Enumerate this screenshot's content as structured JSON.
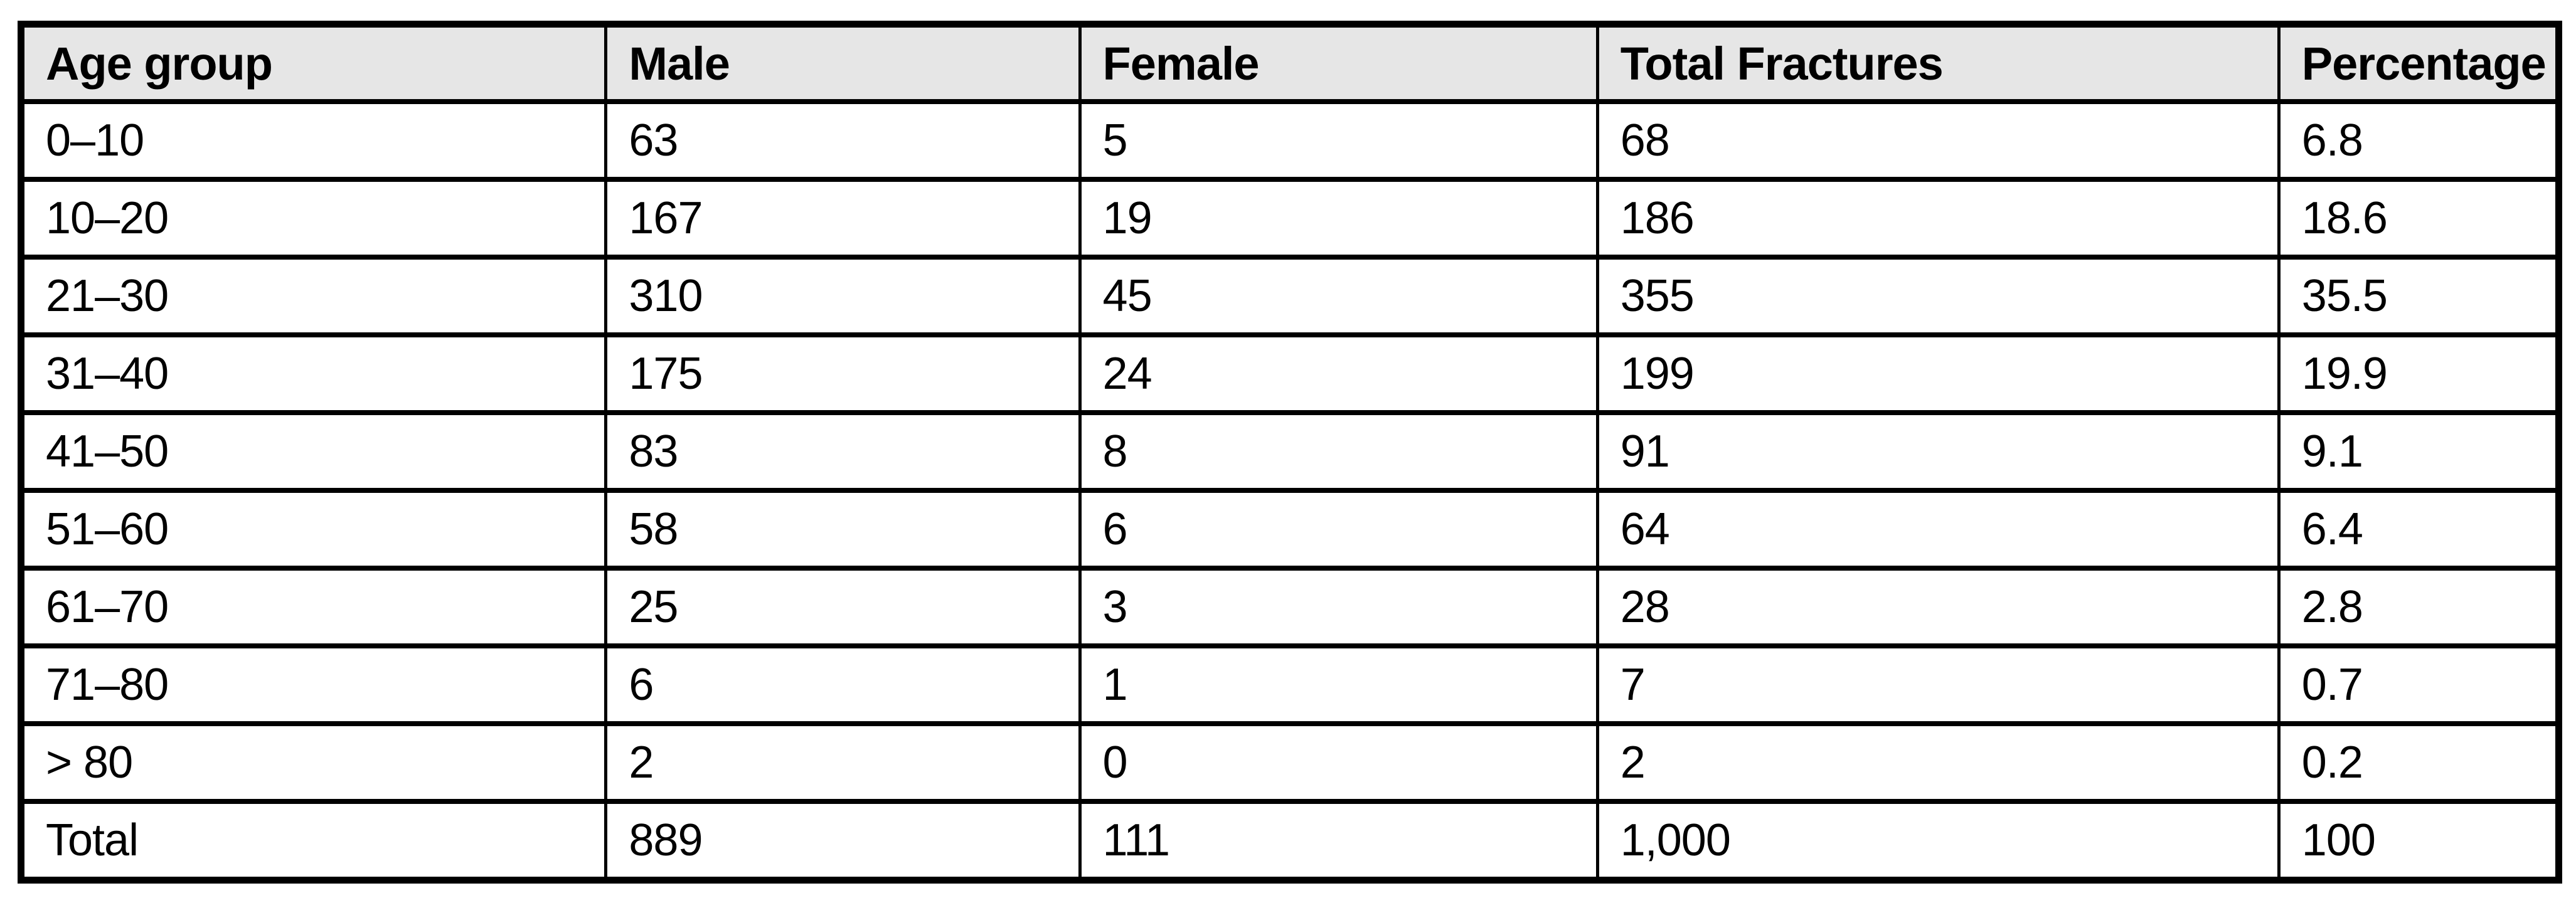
{
  "chart_data": {
    "type": "table",
    "columns": [
      "Age group",
      "Male",
      "Female",
      "Total Fractures",
      "Percentage"
    ],
    "rows": [
      [
        "0–10",
        "63",
        "5",
        "68",
        "6.8"
      ],
      [
        "10–20",
        "167",
        "19",
        "186",
        "18.6"
      ],
      [
        "21–30",
        "310",
        "45",
        "355",
        "35.5"
      ],
      [
        "31–40",
        "175",
        "24",
        "199",
        "19.9"
      ],
      [
        "41–50",
        "83",
        "8",
        "91",
        "9.1"
      ],
      [
        "51–60",
        "58",
        "6",
        "64",
        "6.4"
      ],
      [
        "61–70",
        "25",
        "3",
        "28",
        "2.8"
      ],
      [
        "71–80",
        "6",
        "1",
        "7",
        "0.7"
      ],
      [
        "> 80",
        "2",
        "0",
        "2",
        "0.2"
      ],
      [
        "Total",
        "889",
        "111",
        "1,000",
        "100"
      ]
    ]
  },
  "colors": {
    "header_bg": "#e6e6e6",
    "border": "#000000",
    "text": "#000000",
    "page_bg": "#ffffff"
  }
}
